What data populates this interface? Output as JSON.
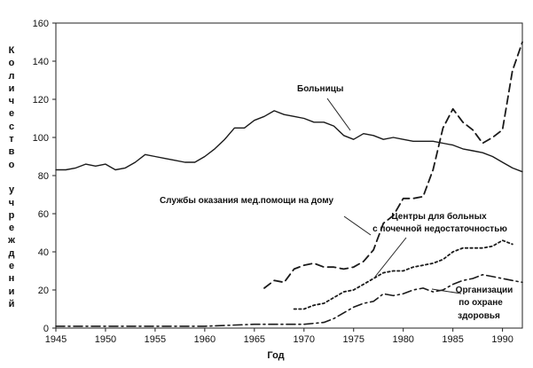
{
  "chart_data": {
    "type": "line",
    "title": "",
    "xlabel": "Год",
    "ylabel": "Количество учреждений",
    "xlim": [
      1945,
      1992
    ],
    "ylim": [
      0,
      160
    ],
    "x_ticks": [
      1945,
      1950,
      1955,
      1960,
      1965,
      1970,
      1975,
      1980,
      1985,
      1990
    ],
    "y_ticks": [
      0,
      20,
      40,
      60,
      80,
      100,
      120,
      140,
      160
    ],
    "grid": false,
    "legend": "none",
    "series": [
      {
        "name": "Больницы",
        "style": "solid",
        "points": [
          [
            1945,
            83
          ],
          [
            1946,
            83
          ],
          [
            1947,
            84
          ],
          [
            1948,
            86
          ],
          [
            1949,
            85
          ],
          [
            1950,
            86
          ],
          [
            1951,
            83
          ],
          [
            1952,
            84
          ],
          [
            1953,
            87
          ],
          [
            1954,
            91
          ],
          [
            1955,
            90
          ],
          [
            1956,
            89
          ],
          [
            1957,
            88
          ],
          [
            1958,
            87
          ],
          [
            1959,
            87
          ],
          [
            1960,
            90
          ],
          [
            1961,
            94
          ],
          [
            1962,
            99
          ],
          [
            1963,
            105
          ],
          [
            1964,
            105
          ],
          [
            1965,
            109
          ],
          [
            1966,
            111
          ],
          [
            1967,
            114
          ],
          [
            1968,
            112
          ],
          [
            1969,
            111
          ],
          [
            1970,
            110
          ],
          [
            1971,
            108
          ],
          [
            1972,
            108
          ],
          [
            1973,
            106
          ],
          [
            1974,
            101
          ],
          [
            1975,
            99
          ],
          [
            1976,
            102
          ],
          [
            1977,
            101
          ],
          [
            1978,
            99
          ],
          [
            1979,
            100
          ],
          [
            1980,
            99
          ],
          [
            1981,
            98
          ],
          [
            1982,
            98
          ],
          [
            1983,
            98
          ],
          [
            1984,
            97
          ],
          [
            1985,
            96
          ],
          [
            1986,
            94
          ],
          [
            1987,
            93
          ],
          [
            1988,
            92
          ],
          [
            1989,
            90
          ],
          [
            1990,
            87
          ],
          [
            1991,
            84
          ],
          [
            1992,
            82
          ]
        ]
      },
      {
        "name": "Службы оказания мед.помощи на дому",
        "style": "dashed",
        "points": [
          [
            1966,
            21
          ],
          [
            1967,
            25
          ],
          [
            1968,
            24
          ],
          [
            1969,
            31
          ],
          [
            1970,
            33
          ],
          [
            1971,
            34
          ],
          [
            1972,
            32
          ],
          [
            1973,
            32
          ],
          [
            1974,
            31
          ],
          [
            1975,
            32
          ],
          [
            1976,
            35
          ],
          [
            1977,
            41
          ],
          [
            1978,
            55
          ],
          [
            1979,
            59
          ],
          [
            1980,
            68
          ],
          [
            1981,
            68
          ],
          [
            1982,
            69
          ],
          [
            1983,
            83
          ],
          [
            1984,
            105
          ],
          [
            1985,
            115
          ],
          [
            1986,
            108
          ],
          [
            1987,
            104
          ],
          [
            1988,
            97
          ],
          [
            1989,
            100
          ],
          [
            1990,
            104
          ],
          [
            1991,
            135
          ],
          [
            1992,
            150
          ]
        ]
      },
      {
        "name": "Центры для больных с почечной недостаточностью",
        "style": "dotted",
        "points": [
          [
            1969,
            10
          ],
          [
            1970,
            10
          ],
          [
            1971,
            12
          ],
          [
            1972,
            13
          ],
          [
            1973,
            16
          ],
          [
            1974,
            19
          ],
          [
            1975,
            20
          ],
          [
            1976,
            23
          ],
          [
            1977,
            26
          ],
          [
            1978,
            29
          ],
          [
            1979,
            30
          ],
          [
            1980,
            30
          ],
          [
            1981,
            32
          ],
          [
            1982,
            33
          ],
          [
            1983,
            34
          ],
          [
            1984,
            36
          ],
          [
            1985,
            40
          ],
          [
            1986,
            42
          ],
          [
            1987,
            42
          ],
          [
            1988,
            42
          ],
          [
            1989,
            43
          ],
          [
            1990,
            46
          ],
          [
            1991,
            44
          ]
        ]
      },
      {
        "name": "Организации по охране здоровья",
        "style": "dash-dot",
        "points": [
          [
            1945,
            1
          ],
          [
            1950,
            1
          ],
          [
            1955,
            1
          ],
          [
            1960,
            1
          ],
          [
            1965,
            2
          ],
          [
            1968,
            2
          ],
          [
            1970,
            2
          ],
          [
            1972,
            3
          ],
          [
            1973,
            5
          ],
          [
            1974,
            8
          ],
          [
            1975,
            11
          ],
          [
            1976,
            13
          ],
          [
            1977,
            14
          ],
          [
            1978,
            18
          ],
          [
            1979,
            17
          ],
          [
            1980,
            18
          ],
          [
            1981,
            20
          ],
          [
            1982,
            21
          ],
          [
            1983,
            19
          ],
          [
            1984,
            20
          ],
          [
            1985,
            23
          ],
          [
            1986,
            25
          ],
          [
            1987,
            26
          ],
          [
            1988,
            28
          ],
          [
            1989,
            27
          ],
          [
            1990,
            26
          ],
          [
            1991,
            25
          ],
          [
            1992,
            24
          ]
        ]
      }
    ],
    "annotations": [
      {
        "lines": [
          "Больницы"
        ],
        "series": 0
      },
      {
        "lines": [
          "Службы оказания мед.помощи на дому"
        ],
        "series": 1
      },
      {
        "lines": [
          "Центры для больных",
          "с почечной недостаточностью"
        ],
        "series": 2
      },
      {
        "lines": [
          "Организации",
          "по охране",
          "здоровья"
        ],
        "series": 3
      }
    ]
  }
}
